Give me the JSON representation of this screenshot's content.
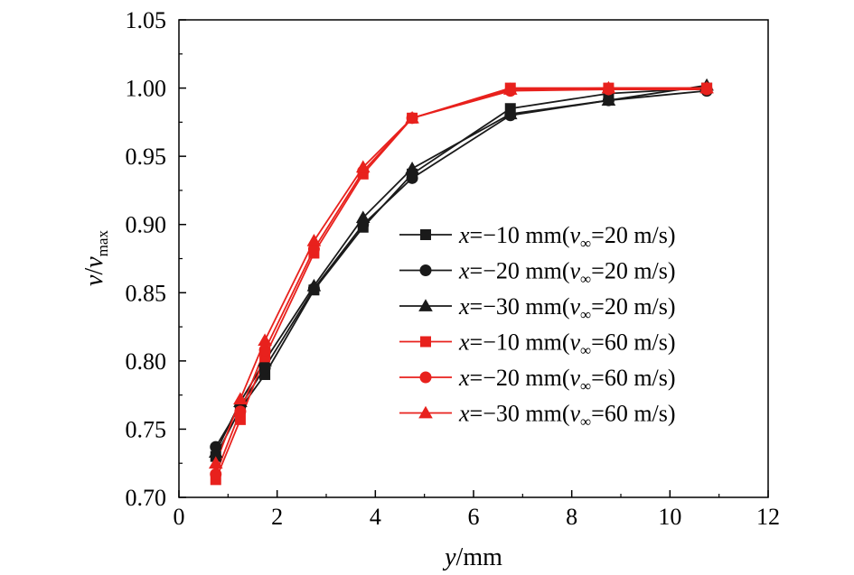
{
  "chart_data": {
    "type": "line",
    "xlabel": {
      "var": "y",
      "unit": "/mm"
    },
    "ylabel": {
      "var": "v",
      "sep": "/",
      "var2": "v",
      "sub2": "max"
    },
    "xlim": [
      0,
      12
    ],
    "ylim": [
      0.7,
      1.05
    ],
    "xticks": [
      "0",
      "2",
      "4",
      "6",
      "8",
      "10",
      "12"
    ],
    "yticks": [
      "0.70",
      "0.75",
      "0.80",
      "0.85",
      "0.90",
      "0.95",
      "1.00",
      "1.05"
    ],
    "legend_position": "lower-right",
    "grid": false,
    "x": [
      0.75,
      1.25,
      1.75,
      2.75,
      3.75,
      4.75,
      6.75,
      8.75,
      10.75
    ],
    "series": [
      {
        "name": {
          "pre": "x",
          "mid": "=−10 mm(",
          "v": "v",
          "sub": "∞",
          "post": "=20 m/s)"
        },
        "color": "#1a1a1a",
        "marker": "square",
        "values": [
          0.73,
          0.765,
          0.79,
          0.852,
          0.898,
          0.937,
          0.985,
          0.996,
          1.0
        ]
      },
      {
        "name": {
          "pre": "x",
          "mid": "=−20 mm(",
          "v": "v",
          "sub": "∞",
          "post": "=20 m/s)"
        },
        "color": "#1a1a1a",
        "marker": "circle",
        "values": [
          0.737,
          0.767,
          0.795,
          0.853,
          0.9,
          0.934,
          0.98,
          0.991,
          0.998
        ]
      },
      {
        "name": {
          "pre": "x",
          "mid": "=−30 mm(",
          "v": "v",
          "sub": "∞",
          "post": "=20 m/s)"
        },
        "color": "#1a1a1a",
        "marker": "triangle",
        "values": [
          0.733,
          0.77,
          0.8,
          0.855,
          0.905,
          0.941,
          0.981,
          0.991,
          1.002
        ]
      },
      {
        "name": {
          "pre": "x",
          "mid": "=−10 mm(",
          "v": "v",
          "sub": "∞",
          "post": "=60 m/s)"
        },
        "color": "#e8211d",
        "marker": "square",
        "values": [
          0.713,
          0.757,
          0.803,
          0.879,
          0.937,
          0.978,
          1.0,
          1.0,
          1.0
        ]
      },
      {
        "name": {
          "pre": "x",
          "mid": "=−20 mm(",
          "v": "v",
          "sub": "∞",
          "post": "=60 m/s)"
        },
        "color": "#e8211d",
        "marker": "circle",
        "values": [
          0.717,
          0.763,
          0.808,
          0.882,
          0.939,
          0.978,
          0.998,
          0.999,
          0.999
        ]
      },
      {
        "name": {
          "pre": "x",
          "mid": "=−30 mm(",
          "v": "v",
          "sub": "∞",
          "post": "=60 m/s)"
        },
        "color": "#e8211d",
        "marker": "triangle",
        "values": [
          0.725,
          0.772,
          0.815,
          0.888,
          0.942,
          0.978,
          0.999,
          1.0,
          1.0
        ]
      }
    ]
  }
}
